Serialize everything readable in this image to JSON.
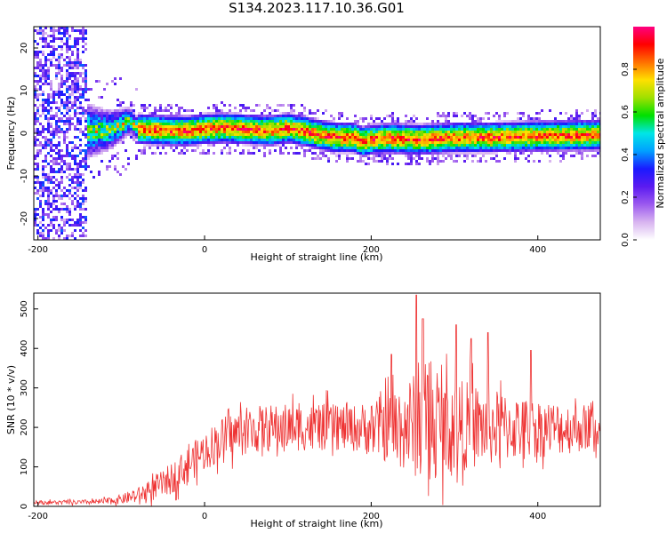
{
  "page_title": "S134.2023.117.10.36.G01",
  "chart_data": [
    {
      "type": "heatmap",
      "xlabel": "Height of straight line (km)",
      "ylabel": "Frequency (Hz)",
      "xlim": [
        -205,
        475
      ],
      "ylim": [
        -25,
        25
      ],
      "x_ticks": [
        -200,
        0,
        200,
        400
      ],
      "y_ticks": [
        -20,
        -10,
        0,
        10,
        20
      ],
      "grid": false,
      "colorbar": {
        "label": "Normalized spectral amplitude",
        "range": [
          0,
          1
        ],
        "ticks": [
          0.0,
          0.2,
          0.4,
          0.6,
          0.8
        ],
        "colormap": [
          "#ffffff",
          "#d8b4f0",
          "#9b59ef",
          "#5b1bf0",
          "#1a1aff",
          "#00a0ff",
          "#00e6e6",
          "#00e000",
          "#a0e000",
          "#ffe000",
          "#ff7000",
          "#ff0000",
          "#ff0080"
        ]
      },
      "ridge": {
        "x": [
          -120,
          -110,
          -100,
          -90,
          -80,
          -60,
          -40,
          -20,
          0,
          20,
          40,
          60,
          80,
          100,
          120,
          140,
          160,
          180,
          190,
          200,
          220,
          260,
          300,
          340,
          380,
          420,
          460,
          475
        ],
        "frequency": [
          0.5,
          1.0,
          2.0,
          3.0,
          1.0,
          0.8,
          0.6,
          0.5,
          1.0,
          1.2,
          1.0,
          0.8,
          0.6,
          1.2,
          0.5,
          -0.5,
          -1.0,
          -1.0,
          -2.0,
          -1.5,
          -1.2,
          -1.5,
          -1.0,
          -1.0,
          -0.8,
          -0.6,
          -0.5,
          -0.5
        ]
      }
    },
    {
      "type": "line",
      "xlabel": "Height of straight line (km)",
      "ylabel": "SNR (10 * v/v)",
      "xlim": [
        -205,
        475
      ],
      "ylim": [
        0,
        540
      ],
      "x_ticks": [
        -200,
        0,
        200,
        400
      ],
      "y_ticks": [
        0,
        100,
        200,
        300,
        400,
        500
      ],
      "grid": false,
      "series": [
        {
          "color": "#ee3333",
          "x": [
            -205,
            -180,
            -150,
            -120,
            -100,
            -80,
            -60,
            -40,
            -20,
            0,
            20,
            40,
            60,
            80,
            100,
            120,
            140,
            160,
            180,
            200,
            220,
            240,
            260,
            280,
            300,
            320,
            340,
            360,
            380,
            400,
            420,
            440,
            460,
            475
          ],
          "mean": [
            10,
            10,
            10,
            12,
            18,
            28,
            45,
            70,
            105,
            140,
            170,
            185,
            195,
            198,
            200,
            200,
            200,
            200,
            198,
            198,
            200,
            205,
            205,
            205,
            205,
            205,
            200,
            200,
            198,
            198,
            198,
            198,
            200,
            195
          ],
          "spread": [
            5,
            5,
            6,
            8,
            12,
            20,
            30,
            40,
            45,
            50,
            55,
            60,
            60,
            60,
            60,
            60,
            60,
            60,
            60,
            70,
            90,
            120,
            140,
            130,
            120,
            110,
            100,
            90,
            80,
            75,
            70,
            65,
            60,
            60
          ],
          "peaks": [
            [
              254,
              535
            ],
            [
              262,
              475
            ],
            [
              302,
              460
            ],
            [
              320,
              425
            ],
            [
              340,
              440
            ],
            [
              392,
              395
            ],
            [
              224,
              385
            ]
          ]
        }
      ]
    }
  ]
}
